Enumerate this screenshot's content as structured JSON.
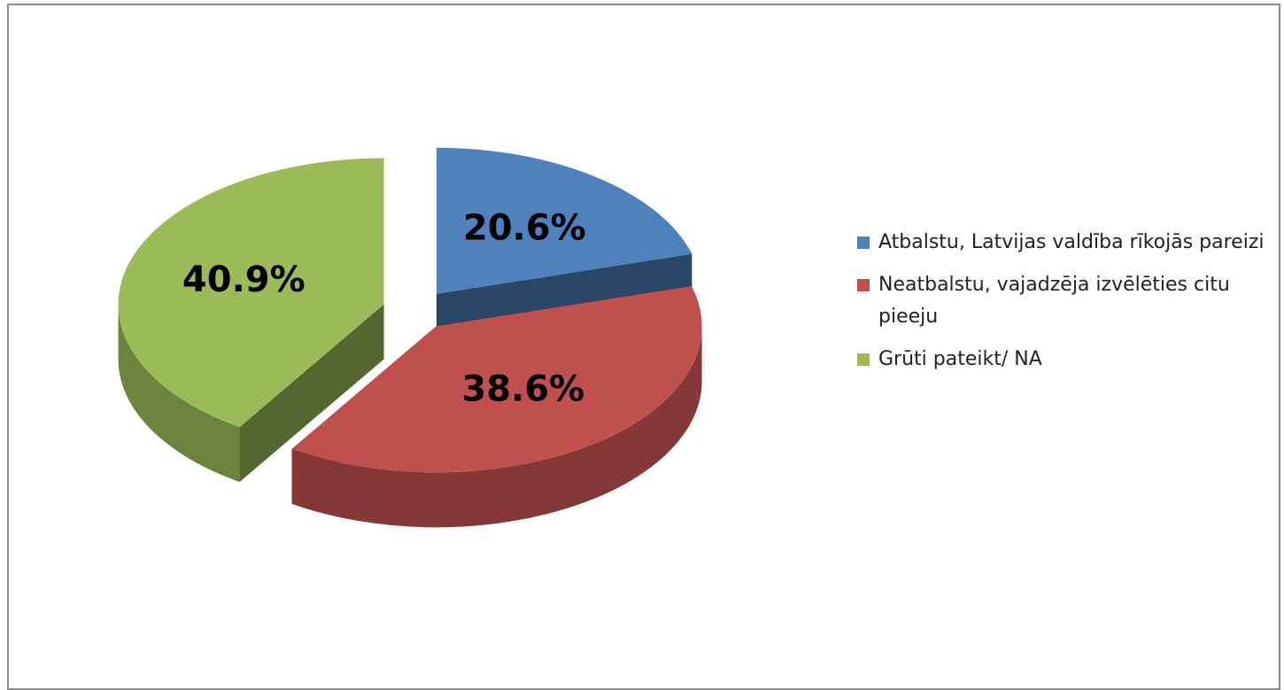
{
  "chart_data": {
    "type": "pie",
    "categories": [
      "Atbalstu, Latvijas valdība rīkojās pareizi",
      "Neatbalstu, vajadzēja izvēlēties citu pieeju",
      "Grūti pateikt/ NA"
    ],
    "values": [
      20.6,
      38.6,
      40.9
    ],
    "value_labels": [
      "20.6%",
      "38.6%",
      "40.9%"
    ],
    "colors": [
      "#4f81bd",
      "#c0504d",
      "#9bbb59"
    ],
    "legend": "right"
  }
}
